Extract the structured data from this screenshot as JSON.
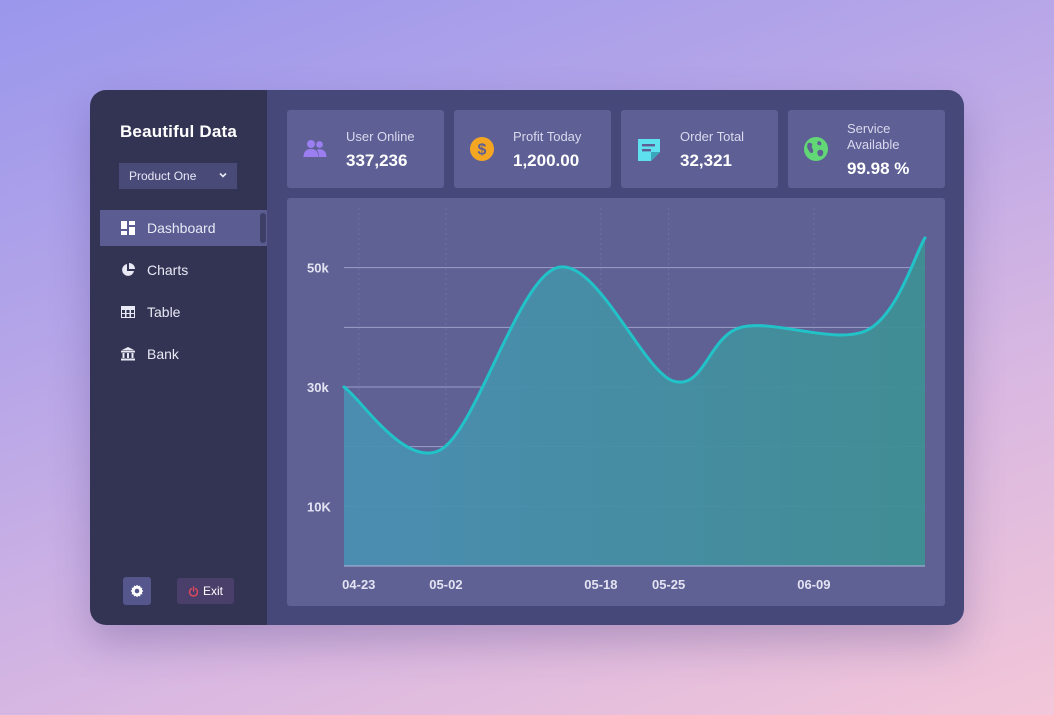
{
  "app": {
    "title": "Beautiful Data"
  },
  "product_select": {
    "value": "Product One"
  },
  "nav": {
    "items": [
      {
        "label": "Dashboard",
        "icon": "dashboard-icon",
        "active": true
      },
      {
        "label": "Charts",
        "icon": "pie-chart-icon"
      },
      {
        "label": "Table",
        "icon": "table-icon"
      },
      {
        "label": "Bank",
        "icon": "bank-icon"
      }
    ]
  },
  "footer": {
    "exit_label": "Exit"
  },
  "stats": [
    {
      "label": "User Online",
      "value": "337,236",
      "icon": "users-icon",
      "color": "#9b7ff0"
    },
    {
      "label": "Profit Today",
      "value": "1,200.00",
      "icon": "dollar-icon",
      "color": "#f4a623"
    },
    {
      "label": "Order Total",
      "value": "32,321",
      "icon": "note-icon",
      "color": "#5fe0ef"
    },
    {
      "label": "Service Available",
      "value": "99.98 %",
      "icon": "globe-icon",
      "color": "#62d775"
    }
  ],
  "colors": {
    "line": "#22c3c8",
    "area_top": "#4a8fb3",
    "area_bottom": "#3e84a8"
  },
  "chart_data": {
    "type": "area",
    "x": [
      "04-23",
      "05-02",
      "05-18",
      "05-25",
      "06-09"
    ],
    "y_ticks": [
      "10K",
      "30k",
      "50k"
    ],
    "ylim": [
      0,
      60000
    ],
    "series": [
      {
        "points": [
          {
            "x": "04-16",
            "y": 30000
          },
          {
            "x": "04-26",
            "y": 19500
          },
          {
            "x": "05-08",
            "y": 50000
          },
          {
            "x": "05-20",
            "y": 31000
          },
          {
            "x": "05-27",
            "y": 40000
          },
          {
            "x": "06-09",
            "y": 39500
          },
          {
            "x": "06-15",
            "y": 55000
          }
        ]
      }
    ],
    "grid": true
  }
}
